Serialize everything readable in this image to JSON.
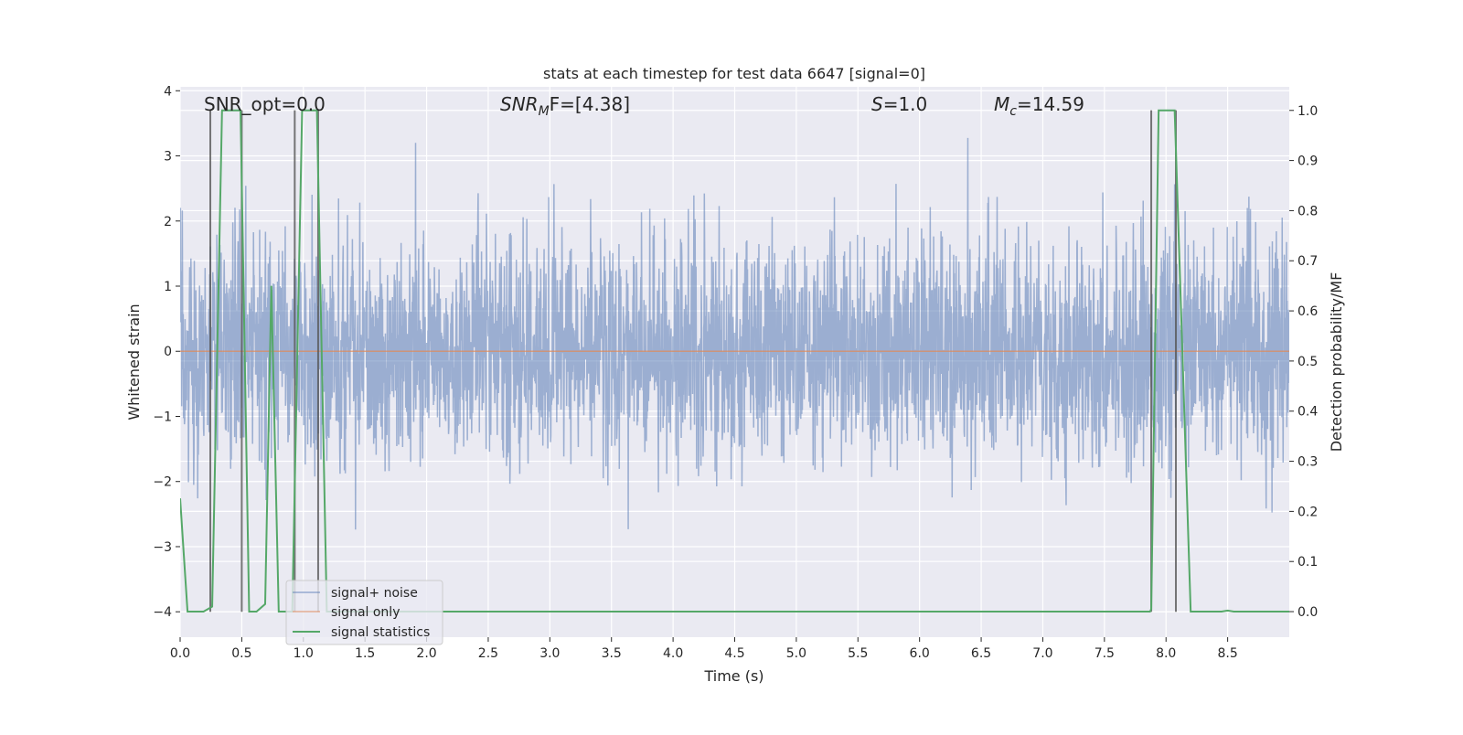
{
  "chart_data": {
    "type": "line",
    "title": "stats at each timestep for test data 6647 [signal=0]",
    "xlabel": "Time (s)",
    "ylabel": "Whitened strain",
    "y2label": "Detection probability/MF",
    "xlim": [
      0.0,
      9.0
    ],
    "ylim": [
      -4.39,
      4.06
    ],
    "y2lim": [
      -0.051,
      1.047
    ],
    "xticks": [
      "0.0",
      "0.5",
      "1.0",
      "1.5",
      "2.0",
      "2.5",
      "3.0",
      "3.5",
      "4.0",
      "4.5",
      "5.0",
      "5.5",
      "6.0",
      "6.5",
      "7.0",
      "7.5",
      "8.0",
      "8.5"
    ],
    "yticks": [
      "4",
      "3",
      "2",
      "1",
      "0",
      "−1",
      "−2",
      "−3",
      "−4"
    ],
    "y2ticks": [
      "1.0",
      "0.9",
      "0.8",
      "0.7",
      "0.6",
      "0.5",
      "0.4",
      "0.3",
      "0.2",
      "0.1",
      "0.0"
    ],
    "grid": true,
    "legend_placement": "lower-left",
    "legend": [
      "signal+ noise",
      "signal only",
      "signal statistics"
    ],
    "annotations": {
      "snr_opt": "SNR_opt=0.0",
      "snr_mf_main": "SNR",
      "snr_mf_sub": "M",
      "snr_mf_rest": "F=[4.38]",
      "s_sym": "S",
      "s_rest": "=1.0",
      "mc_sym": "M",
      "mc_sub": "c",
      "mc_rest": "=14.59"
    },
    "series": [
      {
        "name": "signal+ noise",
        "axis": "left",
        "color": "#4c72b0",
        "kind": "noise",
        "noise_std": 0.85,
        "peak_abs_max": 3.65,
        "n_samples": 3600,
        "x_range": [
          0.0,
          9.0
        ]
      },
      {
        "name": "signal only",
        "axis": "left",
        "color": "#dd8452",
        "x": [
          0.0,
          9.0
        ],
        "y": [
          0.0,
          0.0
        ]
      },
      {
        "name": "signal statistics",
        "axis": "right",
        "color": "#55a868",
        "x": [
          0.0,
          0.06,
          0.19,
          0.26,
          0.34,
          0.49,
          0.56,
          0.62,
          0.69,
          0.74,
          0.8,
          0.91,
          0.99,
          1.11,
          1.19,
          7.87,
          7.88,
          7.94,
          8.07,
          8.2,
          8.45,
          8.5,
          8.55,
          9.0
        ],
        "y": [
          0.226,
          0.0,
          0.0,
          0.01,
          1.0,
          1.0,
          0.0,
          0.0,
          0.015,
          0.65,
          0.0,
          0.0,
          1.0,
          1.0,
          0.0,
          0.0,
          0.005,
          1.0,
          1.0,
          0.0,
          0.0,
          0.002,
          0.0,
          0.0
        ]
      }
    ],
    "event_markers": {
      "color": "#555555",
      "x": [
        0.245,
        0.5,
        0.93,
        1.12,
        7.88,
        8.08
      ],
      "y_range": [
        -4.0,
        3.7
      ]
    }
  }
}
